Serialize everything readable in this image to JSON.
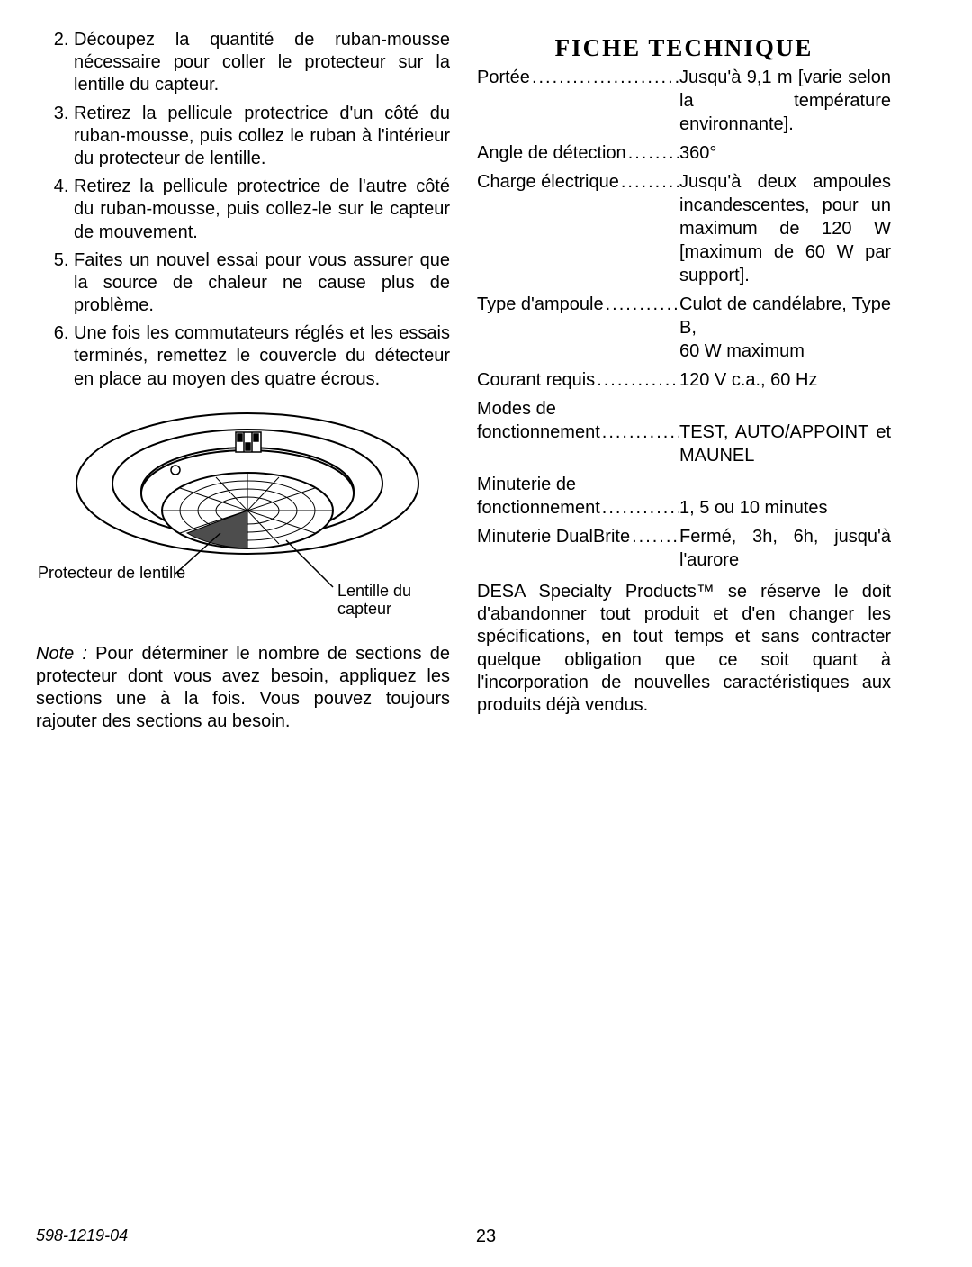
{
  "list": {
    "start": 2,
    "items": [
      "Découpez la quantité de ruban-mousse nécessaire pour coller le protecteur sur la lentille du capteur.",
      "Retirez la pellicule protectrice d'un côté du ruban-mousse, puis collez le ruban à l'intérieur du protecteur de lentille.",
      "Retirez la pellicule protectrice de l'autre côté du ruban-mousse, puis collez-le sur le capteur de mouvement.",
      "Faites un nouvel essai pour vous assurer que la source de chaleur ne cause plus de problème.",
      "Une fois les commutateurs réglés et les essais terminés, remettez le couvercle du détecteur en place au moyen des quatre écrous."
    ]
  },
  "figure": {
    "label_left": "Protecteur de lentille",
    "label_right_1": "Lentille du",
    "label_right_2": "capteur",
    "stroke": "#000000",
    "fill_light": "#ffffff",
    "fill_mid": "#bfbfbf",
    "fill_dark": "#4d4d4d"
  },
  "note": {
    "lead": "Note :",
    "body": " Pour déterminer le nombre de sections de protecteur dont vous avez besoin, appliquez les sections une à la fois. Vous pouvez toujours rajouter des sections au besoin."
  },
  "fiche": {
    "title": "FICHE TECHNIQUE",
    "rows": [
      {
        "label": "Portée",
        "value": "Jusqu'à 9,1 m [varie selon la température environnante]."
      },
      {
        "label": "Angle de détection",
        "value": "360°",
        "nojust": true
      },
      {
        "label": "Charge électrique",
        "value": "Jusqu'à deux ampoules incandescentes, pour un maximum de 120 W [maximum de 60 W par support]."
      },
      {
        "label": "Type d'ampoule",
        "value": "Culot de candélabre, Type B,\n60 W maximum"
      },
      {
        "label": "Courant requis",
        "value": "120 V c.a., 60 Hz",
        "nojust": true
      },
      {
        "label": "Modes de\nfonctionnement",
        "value": "TEST, AUTO/APPOINT et MAUNEL"
      },
      {
        "label": "Minuterie de\nfonctionnement",
        "value": "1, 5 ou 10 minutes",
        "nojust": true
      },
      {
        "label": "Minuterie DualBrite",
        "value": "Fermé, 3h, 6h, jusqu'à l'aurore"
      }
    ],
    "disclaimer": "DESA Specialty Products™ se réserve le doit d'abandonner tout produit et d'en changer les spécifications, en tout temps et sans contracter quelque obligation que ce soit quant à l'incorporation de nouvelles caractéristiques aux produits déjà vendus."
  },
  "footer": {
    "doc": "598-1219-04",
    "page": "23"
  }
}
